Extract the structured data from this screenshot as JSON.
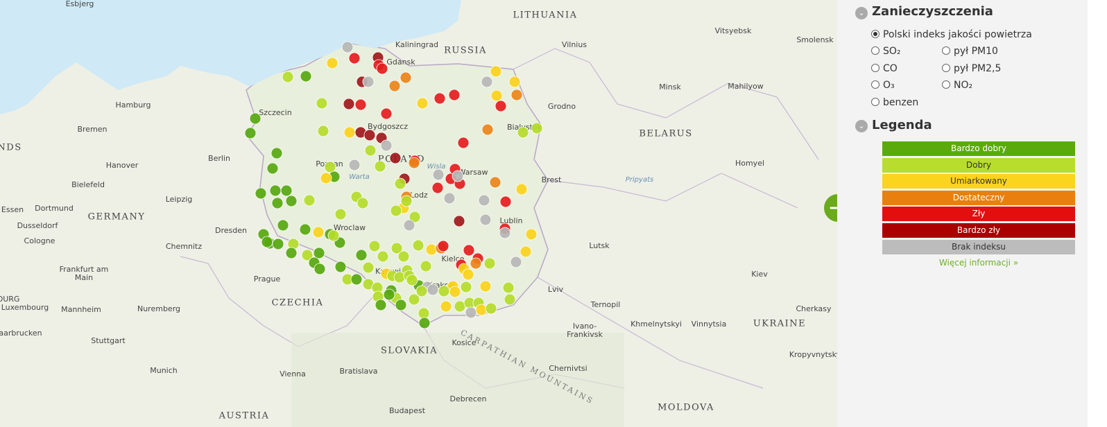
{
  "map": {
    "places": [
      "Esbjerg",
      "LITHUANIA",
      "Vilnius",
      "Vitsyebsk",
      "Smolensk",
      "Kaliningrad",
      "RUSSIA",
      "Gdansk",
      "Hamburg",
      "Szczecin",
      "Minsk",
      "Mahilyow",
      "Grodno",
      "Bialystok",
      "Bremen",
      "Bydgoszcz",
      "BELARUS",
      "NDS",
      "Berlin",
      "Hanover",
      "Poznan",
      "POLAND",
      "Wisla",
      "Warsaw",
      "Homyel",
      "Brest",
      "Bielefeld",
      "Pripyats",
      "Warta",
      "Lodz",
      "Essen",
      "Dortmund",
      "Leipzig",
      "GERMANY",
      "Dusseldorf",
      "Dresden",
      "Wroclaw",
      "Lublin",
      "Cologne",
      "Chemnitz",
      "Lutsk",
      "Kielce",
      "Frankfurt am",
      "Main",
      "Prague",
      "Kiev",
      "Katowice",
      "Krakow",
      "Lviv",
      "OURG",
      "Luxembourg",
      "Mannheim",
      "Nuremberg",
      "CZECHIA",
      "Ternopil",
      "Khmelnytskyi",
      "Vinnytsia",
      "UKRAINE",
      "Cherkasy",
      "Saarbrucken",
      "Stuttgart",
      "Ivano-",
      "Frankivsk",
      "Kosice",
      "SLOVAKIA",
      "Kropyvnytsky",
      "Munich",
      "Vienna",
      "Bratislava",
      "Chernivtsi",
      "Debrecen",
      "Budapest",
      "MOLDOVA",
      "AUSTRIA",
      "CARPATHIAN MOUNTAINS"
    ]
  },
  "panel": {
    "pollutants_title": "Zanieczyszczenia",
    "options": [
      "Polski indeks jakości powietrza",
      "SO₂",
      "pył PM10",
      "CO",
      "pył PM2,5",
      "O₃",
      "NO₂",
      "benzen"
    ],
    "legend_title": "Legenda",
    "legend": [
      "Bardzo dobry",
      "Dobry",
      "Umiarkowany",
      "Dostateczny",
      "Zły",
      "Bardzo zły",
      "Brak indeksu"
    ],
    "more": "Więcej informacji »"
  }
}
